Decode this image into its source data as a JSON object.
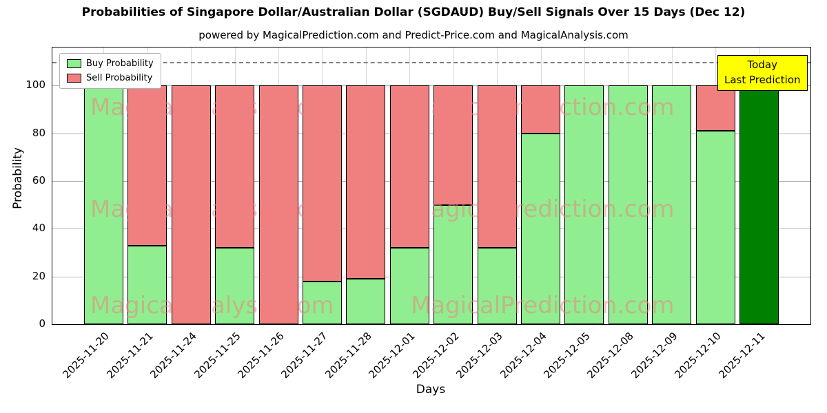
{
  "chart_data": {
    "type": "bar",
    "stacked": true,
    "title": "Probabilities of Singapore Dollar/Australian Dollar (SGDAUD) Buy/Sell Signals Over 15 Days (Dec 12)",
    "subtitle": "powered by MagicalPrediction.com and Predict-Price.com and MagicalAnalysis.com",
    "xlabel": "Days",
    "ylabel": "Probability",
    "ylim": [
      0,
      116
    ],
    "yticks": [
      0,
      20,
      40,
      60,
      80,
      100
    ],
    "dashed_line_y": 110,
    "grid": true,
    "legend_position": "upper-left",
    "categories": [
      "2025-11-20",
      "2025-11-21",
      "2025-11-24",
      "2025-11-25",
      "2025-11-26",
      "2025-11-27",
      "2025-11-28",
      "2025-12-01",
      "2025-12-02",
      "2025-12-03",
      "2025-12-04",
      "2025-12-05",
      "2025-12-08",
      "2025-12-09",
      "2025-12-10",
      "2025-12-11"
    ],
    "series": [
      {
        "name": "Buy Probability",
        "color": "#90ee90",
        "values": [
          100,
          33,
          0,
          32,
          0,
          18,
          19,
          32,
          50,
          32,
          80,
          100,
          100,
          100,
          81,
          100
        ]
      },
      {
        "name": "Sell Probability",
        "color": "#f08080",
        "values": [
          0,
          67,
          100,
          68,
          100,
          82,
          81,
          68,
          50,
          68,
          20,
          0,
          0,
          0,
          19,
          0
        ]
      }
    ],
    "last_bar_color": "#008000",
    "bar_edge_color": "#000000",
    "grid_color": "#b0b0b0",
    "dashed_line_color": "#7f7f7f"
  },
  "annotation": {
    "line1": "Today",
    "line2": "Last Prediction",
    "bg_color": "#ffff00"
  },
  "watermarks": [
    "MagicalAnalysis.com",
    "MagicalPrediction.com"
  ]
}
